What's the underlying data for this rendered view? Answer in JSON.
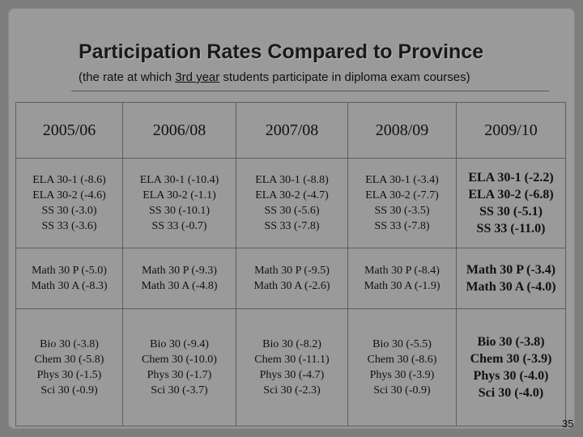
{
  "slide": {
    "title": "Participation Rates Compared to Province",
    "subtitle_pre": "(the rate at which ",
    "subtitle_underlined": "3rd year",
    "subtitle_post": " students participate in diploma exam courses)",
    "page_number": "35"
  },
  "table": {
    "headers": [
      "2005/06",
      "2006/08",
      "2007/08",
      "2008/09",
      "2009/10"
    ],
    "rows": [
      [
        [
          "ELA 30-1 (-8.6)",
          "ELA 30-2 (-4.6)",
          "SS 30 (-3.0)",
          "SS 33 (-3.6)"
        ],
        [
          "ELA 30-1 (-10.4)",
          "ELA 30-2 (-1.1)",
          "SS 30 (-10.1)",
          "SS 33 (-0.7)"
        ],
        [
          "ELA 30-1 (-8.8)",
          "ELA 30-2 (-4.7)",
          "SS 30 (-5.6)",
          "SS 33 (-7.8)"
        ],
        [
          "ELA 30-1 (-3.4)",
          "ELA 30-2 (-7.7)",
          "SS 30 (-3.5)",
          "SS 33 (-7.8)"
        ],
        [
          "ELA 30-1 (-2.2)",
          "ELA 30-2 (-6.8)",
          "SS 30 (-5.1)",
          "SS 33 (-11.0)"
        ]
      ],
      [
        [
          "Math 30 P (-5.0)",
          "Math 30 A (-8.3)"
        ],
        [
          "Math 30 P (-9.3)",
          "Math 30 A (-4.8)"
        ],
        [
          "Math 30 P (-9.5)",
          "Math 30 A (-2.6)"
        ],
        [
          "Math 30 P (-8.4)",
          "Math 30 A (-1.9)"
        ],
        [
          "Math 30 P (-3.4)",
          "Math 30 A (-4.0)"
        ]
      ],
      [
        [
          "Bio 30 (-3.8)",
          "Chem 30 (-5.8)",
          "Phys 30 (-1.5)",
          "Sci 30 (-0.9)"
        ],
        [
          "Bio 30 (-9.4)",
          "Chem 30 (-10.0)",
          "Phys 30 (-1.7)",
          "Sci 30 (-3.7)"
        ],
        [
          "Bio 30 (-8.2)",
          "Chem 30 (-11.1)",
          "Phys 30 (-4.7)",
          "Sci 30 (-2.3)"
        ],
        [
          "Bio 30 (-5.5)",
          "Chem 30 (-8.6)",
          "Phys 30 (-3.9)",
          "Sci 30 (-0.9)"
        ],
        [
          "Bio 30 (-3.8)",
          "Chem 30 (-3.9)",
          "Phys 30 (-4.0)",
          "Sci 30 (-4.0)"
        ]
      ]
    ]
  }
}
